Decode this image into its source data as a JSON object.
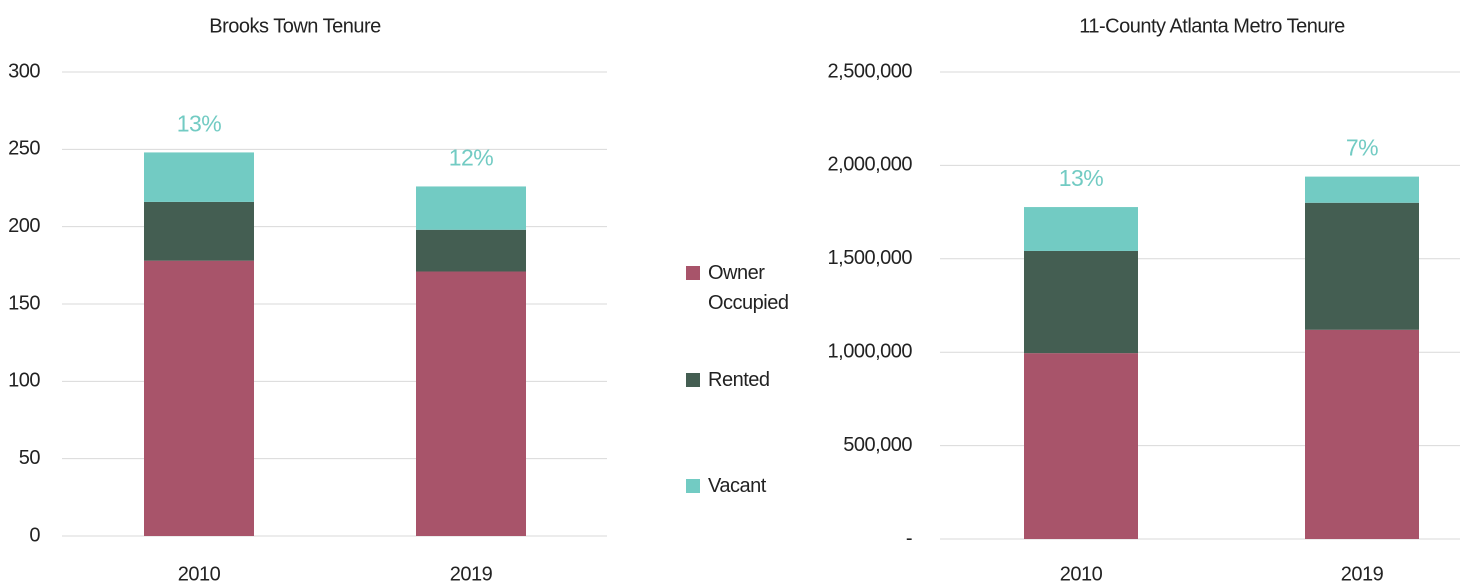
{
  "chart_data": [
    {
      "type": "stacked_bar",
      "title": "Brooks Town Tenure",
      "categories": [
        "2010",
        "2019"
      ],
      "series": [
        {
          "name": "Owner Occupied",
          "color": "#a8546a",
          "values": [
            178,
            171
          ]
        },
        {
          "name": "Rented",
          "color": "#445e52",
          "values": [
            38,
            27
          ]
        },
        {
          "name": "Vacant",
          "color": "#72cbc3",
          "values": [
            32,
            28
          ]
        }
      ],
      "annotations": [
        "13%",
        "12%"
      ],
      "annotation_color": "#72cbc3",
      "ylim": [
        0,
        300
      ],
      "yticks": [
        0,
        50,
        100,
        150,
        200,
        250,
        300
      ],
      "grid": true,
      "legend": "right"
    },
    {
      "type": "stacked_bar",
      "title": "11-County Atlanta Metro Tenure",
      "categories": [
        "2010",
        "2019"
      ],
      "series": [
        {
          "name": "Owner Occupied",
          "color": "#a8546a",
          "values": [
            995000,
            1120000
          ]
        },
        {
          "name": "Rented",
          "color": "#445e52",
          "values": [
            547000,
            680000
          ]
        },
        {
          "name": "Vacant",
          "color": "#72cbc3",
          "values": [
            235000,
            140000
          ]
        }
      ],
      "annotations": [
        "13%",
        "7%"
      ],
      "annotation_color": "#72cbc3",
      "ylim": [
        0,
        2500000
      ],
      "yticks": [
        {
          "value": 0,
          "label": "-"
        },
        {
          "value": 500000,
          "label": "500,000"
        },
        {
          "value": 1000000,
          "label": "1,000,000"
        },
        {
          "value": 1500000,
          "label": "1,500,000"
        },
        {
          "value": 2000000,
          "label": "2,000,000"
        },
        {
          "value": 2500000,
          "label": "2,500,000"
        }
      ],
      "grid": true
    }
  ]
}
